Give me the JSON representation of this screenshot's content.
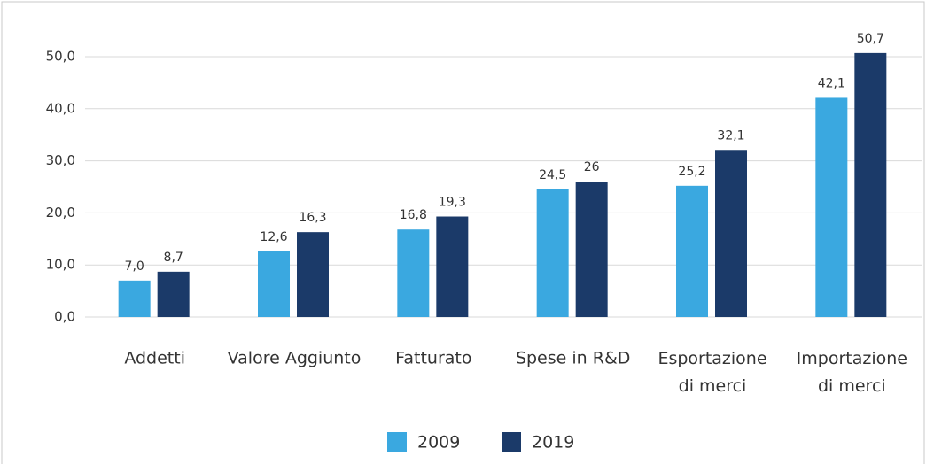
{
  "chart_data": {
    "type": "bar",
    "categories": [
      "Addetti",
      "Valore Aggiunto",
      "Fatturato",
      "Spese in R&D",
      "Esportazione di merci",
      "Importazione di merci"
    ],
    "series": [
      {
        "name": "2009",
        "color": "#3aa8e0",
        "values": [
          7.0,
          12.6,
          16.8,
          24.5,
          25.2,
          42.1
        ],
        "value_labels": [
          "7,0",
          "12,6",
          "16,8",
          "24,5",
          "25,2",
          "42,1"
        ]
      },
      {
        "name": "2019",
        "color": "#1b3a69",
        "values": [
          8.7,
          16.3,
          19.3,
          26,
          32.1,
          50.7
        ],
        "value_labels": [
          "8,7",
          "16,3",
          "19,3",
          "26",
          "32,1",
          "50,7"
        ]
      }
    ],
    "ylim": [
      0,
      50
    ],
    "yticks": [
      {
        "value": 0,
        "label": "0,0"
      },
      {
        "value": 10,
        "label": "10,0"
      },
      {
        "value": 20,
        "label": "20,0"
      },
      {
        "value": 30,
        "label": "30,0"
      },
      {
        "value": 40,
        "label": "40,0"
      },
      {
        "value": 50,
        "label": "50,0"
      }
    ],
    "grid": true,
    "legend": "bottom"
  }
}
